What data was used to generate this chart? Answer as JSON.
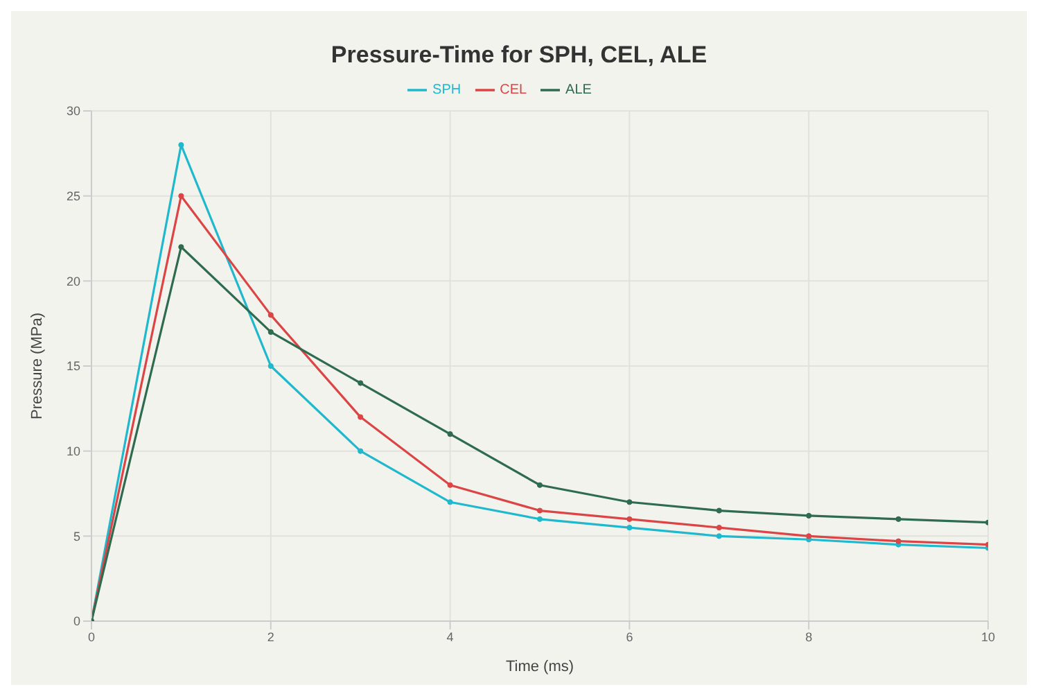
{
  "chart_data": {
    "type": "line",
    "title": "Pressure-Time for SPH, CEL, ALE",
    "xlabel": "Time (ms)",
    "ylabel": "Pressure (MPa)",
    "x": [
      0,
      1,
      2,
      3,
      4,
      5,
      6,
      7,
      8,
      9,
      10
    ],
    "series": [
      {
        "name": "SPH",
        "color": "#1fb8cd",
        "values": [
          0,
          28,
          15,
          10,
          7,
          6,
          5.5,
          5,
          4.8,
          4.5,
          4.3
        ]
      },
      {
        "name": "CEL",
        "color": "#db4545",
        "values": [
          0,
          25,
          18,
          12,
          8,
          6.5,
          6,
          5.5,
          5,
          4.7,
          4.5
        ]
      },
      {
        "name": "ALE",
        "color": "#2e6b4f",
        "values": [
          0,
          22,
          17,
          14,
          11,
          8,
          7,
          6.5,
          6.2,
          6,
          5.8
        ]
      }
    ],
    "xlim": [
      0,
      10
    ],
    "xticks": [
      0,
      2,
      4,
      6,
      8,
      10
    ],
    "ylim": [
      0,
      30
    ],
    "yticks": [
      0,
      5,
      10,
      15,
      20,
      25,
      30
    ],
    "grid": true,
    "legend": "top",
    "marker": "circle",
    "line_style": "solid"
  }
}
